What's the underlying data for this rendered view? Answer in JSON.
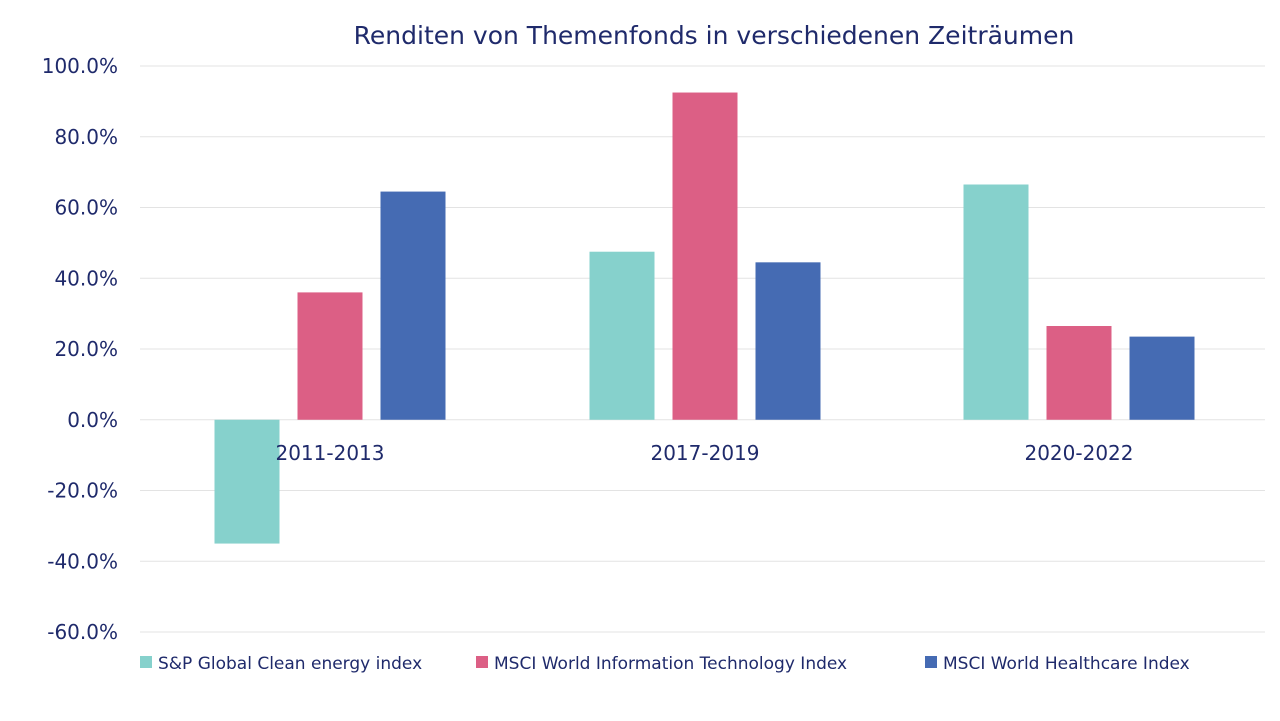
{
  "chart_data": {
    "type": "bar",
    "title": "Renditen von Themenfonds in verschiedenen Zeiträumen",
    "xlabel": "",
    "ylabel": "",
    "categories": [
      "2011-2013",
      "2017-2019",
      "2020-2022"
    ],
    "y_ticks": [
      "-60.0%",
      "-40.0%",
      "-20.0%",
      "0.0%",
      "20.0%",
      "40.0%",
      "60.0%",
      "80.0%",
      "100.0%"
    ],
    "ylim": [
      -60,
      100
    ],
    "grid": true,
    "legend_position": "bottom",
    "series": [
      {
        "name": "S&P Global Clean energy index",
        "color": "#86d1cc",
        "values": [
          -35,
          47.5,
          66.5
        ]
      },
      {
        "name": "MSCI World Information Technology Index",
        "color": "#dc5f85",
        "values": [
          36,
          92.5,
          26.5
        ]
      },
      {
        "name": "MSCI World Healthcare Index",
        "color": "#456bb3",
        "values": [
          64.5,
          44.5,
          23.5
        ]
      }
    ]
  }
}
